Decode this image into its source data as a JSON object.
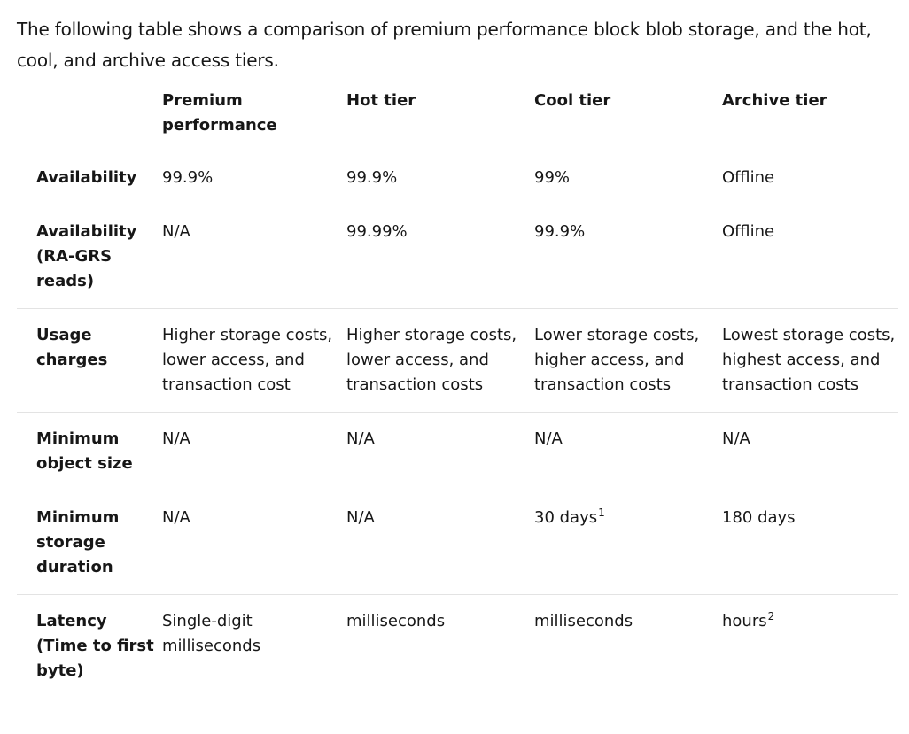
{
  "intro_text": "The following table shows a comparison of premium performance block blob storage, and the hot, cool, and archive access tiers.",
  "table": {
    "headers": [
      "",
      "Premium performance",
      "Hot tier",
      "Cool tier",
      "Archive tier"
    ],
    "rows": [
      {
        "label": "Availability",
        "cells": [
          {
            "text": "99.9%"
          },
          {
            "text": "99.9%"
          },
          {
            "text": "99%"
          },
          {
            "text": "Offline"
          }
        ]
      },
      {
        "label": "Availability (RA-GRS reads)",
        "cells": [
          {
            "text": "N/A"
          },
          {
            "text": "99.99%"
          },
          {
            "text": "99.9%"
          },
          {
            "text": "Offline"
          }
        ]
      },
      {
        "label": "Usage charges",
        "cells": [
          {
            "text": "Higher storage costs, lower access, and transaction cost"
          },
          {
            "text": "Higher storage costs, lower access, and transaction costs"
          },
          {
            "text": "Lower storage costs, higher access, and transaction costs"
          },
          {
            "text": "Lowest storage costs, highest access, and transaction costs"
          }
        ]
      },
      {
        "label": "Minimum object size",
        "cells": [
          {
            "text": "N/A"
          },
          {
            "text": "N/A"
          },
          {
            "text": "N/A"
          },
          {
            "text": "N/A"
          }
        ]
      },
      {
        "label": "Minimum storage duration",
        "cells": [
          {
            "text": "N/A"
          },
          {
            "text": "N/A"
          },
          {
            "text": "30 days",
            "footnote": "1"
          },
          {
            "text": "180 days"
          }
        ]
      },
      {
        "label": "Latency (Time to first byte)",
        "cells": [
          {
            "text": "Single-digit milliseconds"
          },
          {
            "text": "milliseconds"
          },
          {
            "text": "milliseconds"
          },
          {
            "text": "hours",
            "footnote": "2"
          }
        ]
      }
    ]
  }
}
